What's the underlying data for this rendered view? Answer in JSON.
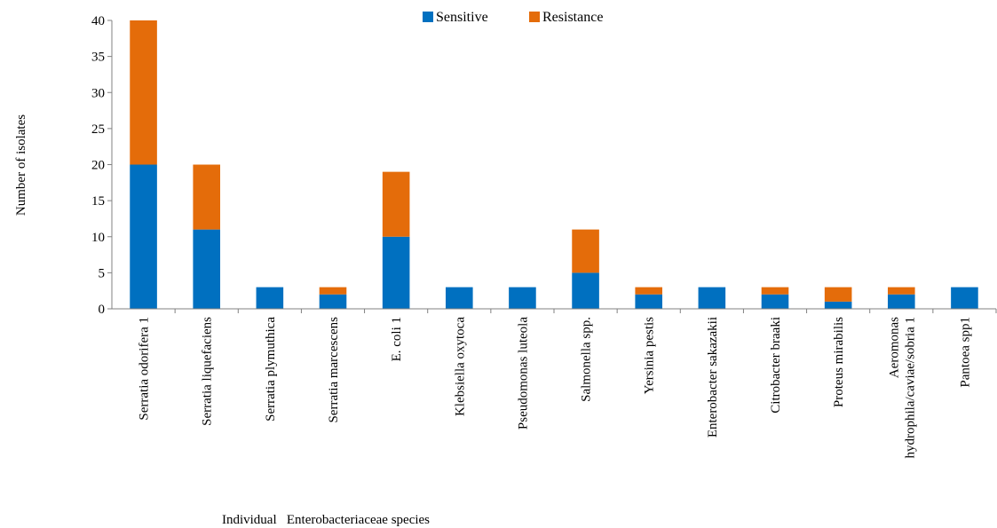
{
  "chart_data": {
    "type": "bar",
    "stacked": true,
    "xlabel": "Individual   Enterobacteriaceae species",
    "ylabel": "Number of isolates",
    "ylim": [
      0,
      40
    ],
    "yticks": [
      0,
      5,
      10,
      15,
      20,
      25,
      30,
      35,
      40
    ],
    "legend_position": "top",
    "categories": [
      [
        "Serratia odorifera 1"
      ],
      [
        "Serratia liquefaciens"
      ],
      [
        "Serratia plymuthica"
      ],
      [
        "Serratia marcescens"
      ],
      [
        "E. coli 1"
      ],
      [
        "Klebsiella oxytoca"
      ],
      [
        "Pseudomonas luteola"
      ],
      [
        "Salmonella spp."
      ],
      [
        "Yersinia pestis"
      ],
      [
        "Enterobacter sakazakii"
      ],
      [
        "Citrobacter braaki"
      ],
      [
        "Proteus mirabilis"
      ],
      [
        "Aeromonas",
        "hydrophila/caviae/sobria 1"
      ],
      [
        "Pantoea spp1"
      ]
    ],
    "series": [
      {
        "name": "Sensitive",
        "color": "#0070C0",
        "values": [
          20,
          11,
          3,
          2,
          10,
          3,
          3,
          5,
          2,
          3,
          2,
          1,
          2,
          3
        ]
      },
      {
        "name": "Resistance",
        "color": "#E46C0A",
        "values": [
          20,
          9,
          0,
          1,
          9,
          0,
          0,
          6,
          1,
          0,
          1,
          2,
          1,
          0
        ]
      }
    ]
  }
}
